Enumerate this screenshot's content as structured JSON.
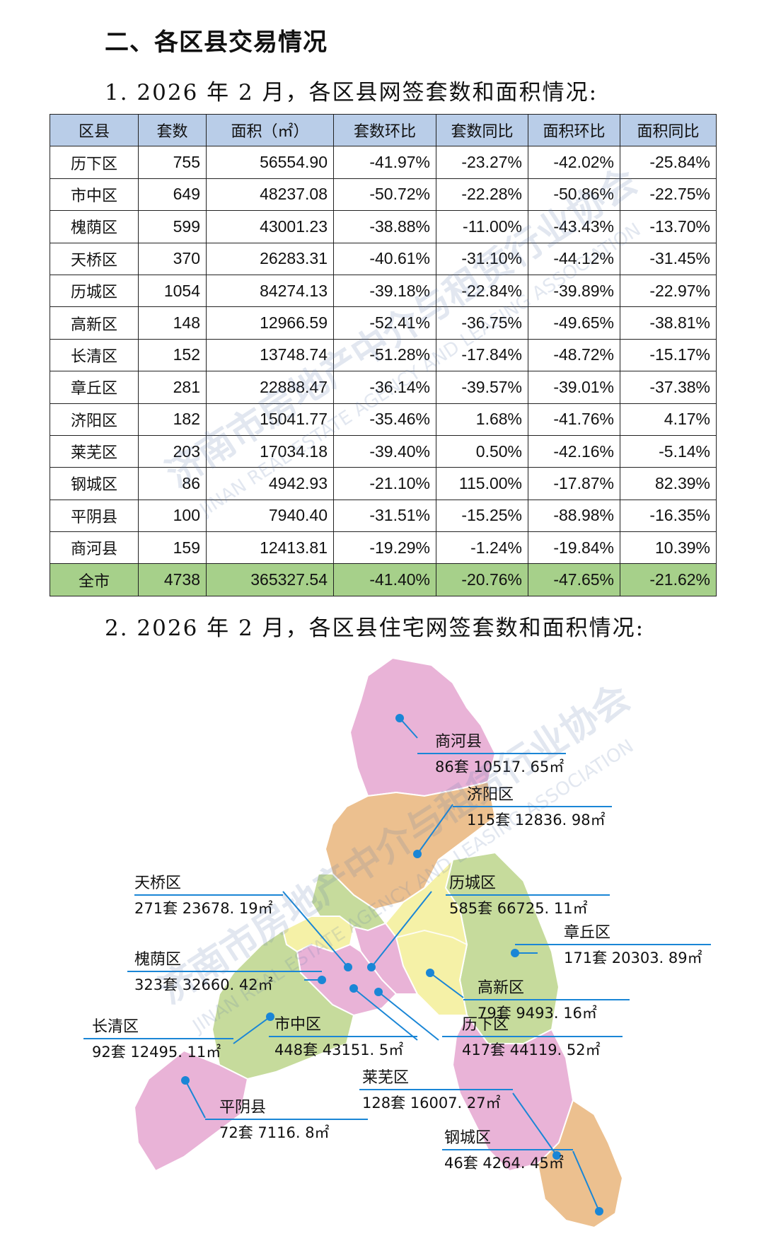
{
  "heading": "二、各区县交易情况",
  "subheading1": "1. 2026 年 2 月，各区县网签套数和面积情况:",
  "subheading2": "2. 2026 年 2 月，各区县住宅网签套数和面积情况:",
  "table": {
    "headers": [
      "区县",
      "套数",
      "面积（㎡）",
      "套数环比",
      "套数同比",
      "面积环比",
      "面积同比"
    ],
    "rows": [
      [
        "历下区",
        "755",
        "56554.90",
        "-41.97%",
        "-23.27%",
        "-42.02%",
        "-25.84%"
      ],
      [
        "市中区",
        "649",
        "48237.08",
        "-50.72%",
        "-22.28%",
        "-50.86%",
        "-22.75%"
      ],
      [
        "槐荫区",
        "599",
        "43001.23",
        "-38.88%",
        "-11.00%",
        "-43.43%",
        "-13.70%"
      ],
      [
        "天桥区",
        "370",
        "26283.31",
        "-40.61%",
        "-31.10%",
        "-44.12%",
        "-31.45%"
      ],
      [
        "历城区",
        "1054",
        "84274.13",
        "-39.18%",
        "-22.84%",
        "-39.89%",
        "-22.97%"
      ],
      [
        "高新区",
        "148",
        "12966.59",
        "-52.41%",
        "-36.75%",
        "-49.65%",
        "-38.81%"
      ],
      [
        "长清区",
        "152",
        "13748.74",
        "-51.28%",
        "-17.84%",
        "-48.72%",
        "-15.17%"
      ],
      [
        "章丘区",
        "281",
        "22888.47",
        "-36.14%",
        "-39.57%",
        "-39.01%",
        "-37.38%"
      ],
      [
        "济阳区",
        "182",
        "15041.77",
        "-35.46%",
        "1.68%",
        "-41.76%",
        "4.17%"
      ],
      [
        "莱芜区",
        "203",
        "17034.18",
        "-39.40%",
        "0.50%",
        "-42.16%",
        "-5.14%"
      ],
      [
        "钢城区",
        "86",
        "4942.93",
        "-21.10%",
        "115.00%",
        "-17.87%",
        "82.39%"
      ],
      [
        "平阴县",
        "100",
        "7940.40",
        "-31.51%",
        "-15.25%",
        "-88.98%",
        "-16.35%"
      ],
      [
        "商河县",
        "159",
        "12413.81",
        "-19.29%",
        "-1.24%",
        "-19.84%",
        "10.39%"
      ]
    ],
    "total": [
      "全市",
      "4738",
      "365327.54",
      "-41.40%",
      "-20.76%",
      "-47.65%",
      "-21.62%"
    ]
  },
  "map_labels": [
    {
      "name": "商河县",
      "value": "86套 10517. 65㎡"
    },
    {
      "name": "济阳区",
      "value": "115套 12836. 98㎡"
    },
    {
      "name": "天桥区",
      "value": "271套 23678. 19㎡"
    },
    {
      "name": "历城区",
      "value": "585套 66725. 11㎡"
    },
    {
      "name": "章丘区",
      "value": "171套 20303. 89㎡"
    },
    {
      "name": "槐荫区",
      "value": "323套 32660. 42㎡"
    },
    {
      "name": "高新区",
      "value": "79套 9493. 16㎡"
    },
    {
      "name": "长清区",
      "value": "92套 12495. 11㎡"
    },
    {
      "name": "市中区",
      "value": "448套 43151. 5㎡"
    },
    {
      "name": "历下区",
      "value": "417套 44119. 52㎡"
    },
    {
      "name": "莱芜区",
      "value": "128套 16007. 27㎡"
    },
    {
      "name": "平阴县",
      "value": "72套 7116. 8㎡"
    },
    {
      "name": "钢城区",
      "value": "46套 4264. 45㎡"
    }
  ],
  "watermark": {
    "cn": "济南市房地产中介与租赁行业协会",
    "en": "JINAN REAL ESTATE AGENCY AND LEASING ASSOCIATION"
  },
  "colors": {
    "header_fill": "#b9cde8",
    "total_fill": "#a6d08a",
    "leader_line": "#1a86d6",
    "pink": "#e9b3d7",
    "orange": "#ecc08f",
    "green": "#c6db9c",
    "yellow": "#f5f1a7"
  }
}
